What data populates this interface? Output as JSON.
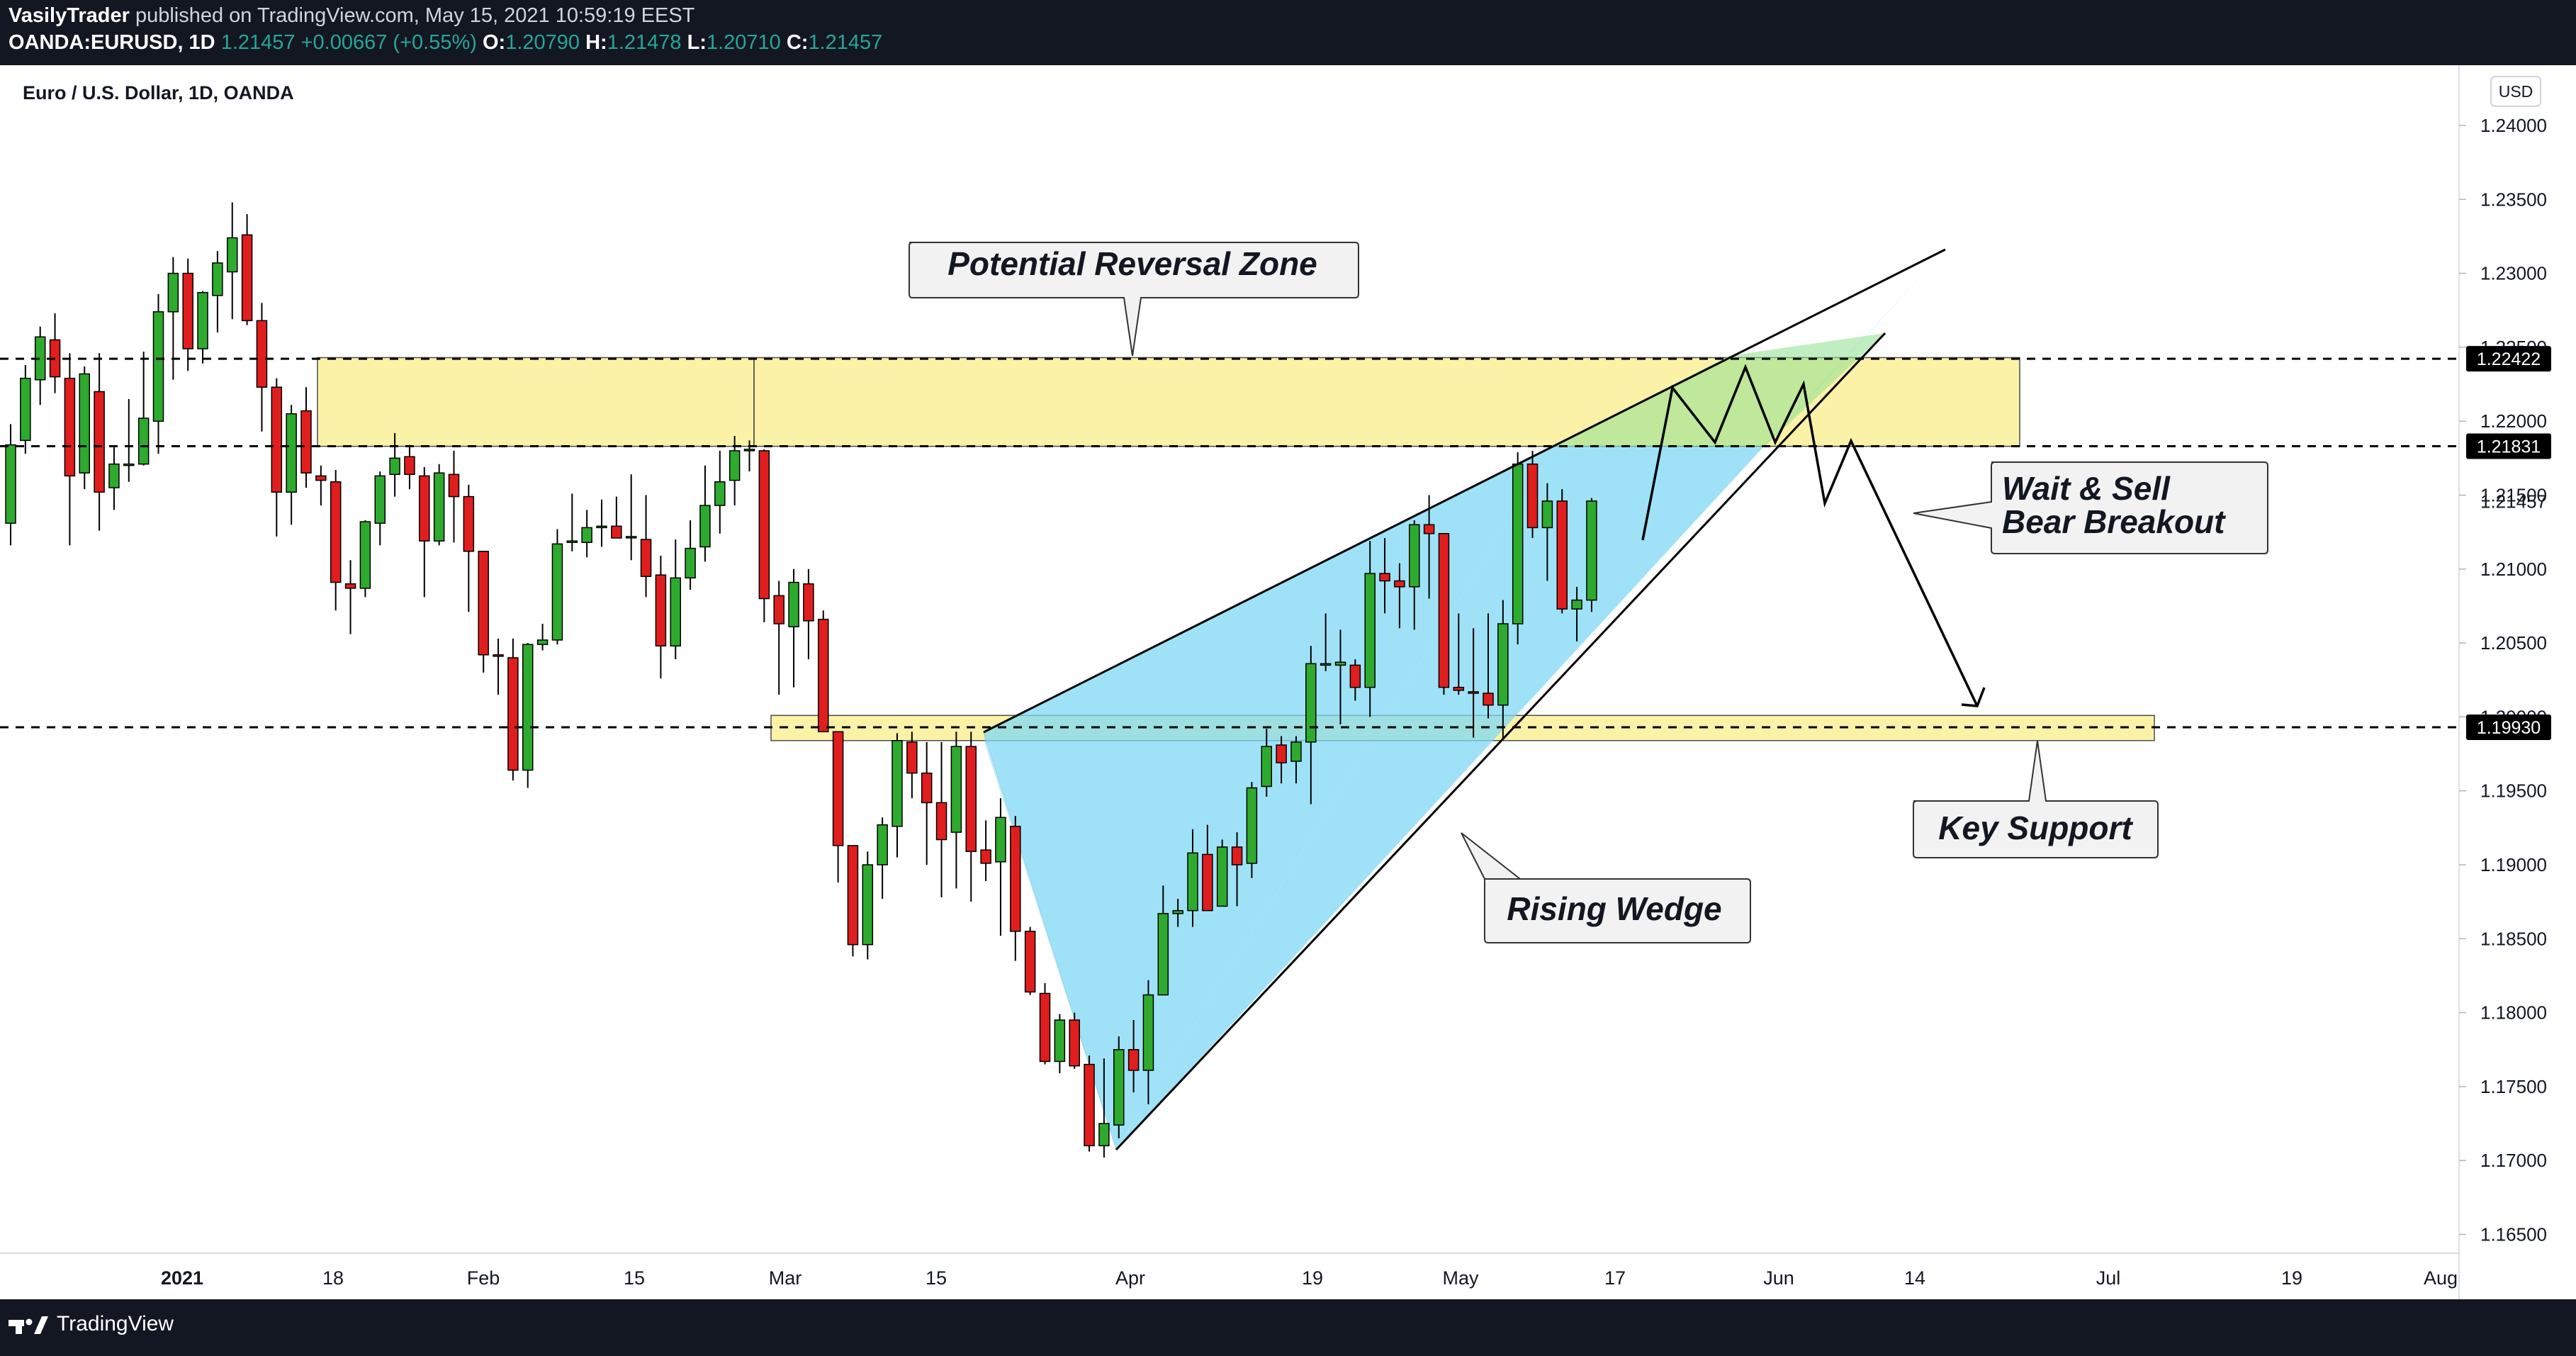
{
  "header": {
    "publisher": "VasilyTrader",
    "published_text": "published on TradingView.com, May 15, 2021 10:59:19 EEST",
    "symbol": "OANDA:EURUSD, 1D",
    "last": "1.21457",
    "change": "+0.00667 (+0.55%)",
    "o_label": "O:",
    "o_value": "1.20790",
    "h_label": "H:",
    "h_value": "1.21478",
    "l_label": "L:",
    "l_value": "1.20710",
    "c_label": "C:",
    "c_value": "1.21457"
  },
  "footer": {
    "brand": "TradingView"
  },
  "chart_data": {
    "type": "candlestick",
    "title": "Euro / U.S. Dollar, 1D, OANDA",
    "currency_badge": "USD",
    "y_range": [
      1.1625,
      1.2435
    ],
    "y_ticks": [
      "1.24000",
      "1.23500",
      "1.23000",
      "1.22500",
      "1.22000",
      "1.21500",
      "1.21000",
      "1.20500",
      "1.20000",
      "1.19500",
      "1.19000",
      "1.18500",
      "1.18000",
      "1.17500",
      "1.17000",
      "1.16500"
    ],
    "x_ticks": [
      {
        "label": "2021",
        "bold": true
      },
      {
        "label": "18"
      },
      {
        "label": "Feb"
      },
      {
        "label": "15"
      },
      {
        "label": "Mar"
      },
      {
        "label": "15"
      },
      {
        "label": "Apr"
      },
      {
        "label": "19"
      },
      {
        "label": "May"
      },
      {
        "label": "17"
      },
      {
        "label": "Jun"
      },
      {
        "label": "14"
      },
      {
        "label": "Jul"
      },
      {
        "label": "19"
      },
      {
        "label": "Aug"
      }
    ],
    "price_markers": [
      {
        "value": "1.22422",
        "price": 1.22422,
        "style": "dashed"
      },
      {
        "value": "1.21831",
        "price": 1.21831,
        "style": "dashed"
      },
      {
        "value": "1.21457",
        "price": 1.21457,
        "style": "plain"
      },
      {
        "value": "1.19930",
        "price": 1.1993,
        "style": "dashed"
      }
    ],
    "zones": [
      {
        "name": "Potential Reversal Zone",
        "from": 1.2183,
        "to": 1.2243
      },
      {
        "name": "Key Support",
        "from": 1.1984,
        "to": 1.2001
      }
    ],
    "annotations": [
      "Potential Reversal Zone",
      "Wait & Sell",
      "Bear Breakout",
      "Key Support",
      "Rising Wedge"
    ],
    "colors": {
      "up": "#26a69a",
      "bull_body": "#2eaa2e",
      "bear_body": "#e01e1e",
      "wedge": "#7fd8f5",
      "zone": "#fbf2a8",
      "background": "#ffffff"
    },
    "candles": [
      {
        "o": 1.2131,
        "h": 1.2198,
        "l": 1.2116,
        "c": 1.2184
      },
      {
        "o": 1.2187,
        "h": 1.2238,
        "l": 1.2178,
        "c": 1.2229
      },
      {
        "o": 1.2228,
        "h": 1.2264,
        "l": 1.2211,
        "c": 1.2257
      },
      {
        "o": 1.2255,
        "h": 1.2273,
        "l": 1.2219,
        "c": 1.223
      },
      {
        "o": 1.2229,
        "h": 1.2246,
        "l": 1.2116,
        "c": 1.2163
      },
      {
        "o": 1.2165,
        "h": 1.2237,
        "l": 1.2154,
        "c": 1.2232
      },
      {
        "o": 1.222,
        "h": 1.2246,
        "l": 1.2126,
        "c": 1.2152
      },
      {
        "o": 1.2155,
        "h": 1.2183,
        "l": 1.214,
        "c": 1.2171
      },
      {
        "o": 1.2171,
        "h": 1.2215,
        "l": 1.2159,
        "c": 1.2171
      },
      {
        "o": 1.2171,
        "h": 1.2247,
        "l": 1.217,
        "c": 1.2202
      },
      {
        "o": 1.22,
        "h": 1.2286,
        "l": 1.2178,
        "c": 1.2274
      },
      {
        "o": 1.2274,
        "h": 1.2311,
        "l": 1.2228,
        "c": 1.23
      },
      {
        "o": 1.23,
        "h": 1.231,
        "l": 1.2234,
        "c": 1.2249
      },
      {
        "o": 1.2249,
        "h": 1.2288,
        "l": 1.2239,
        "c": 1.2287
      },
      {
        "o": 1.2285,
        "h": 1.2315,
        "l": 1.226,
        "c": 1.2307
      },
      {
        "o": 1.2301,
        "h": 1.2348,
        "l": 1.2269,
        "c": 1.2324
      },
      {
        "o": 1.2326,
        "h": 1.234,
        "l": 1.2265,
        "c": 1.2268
      },
      {
        "o": 1.2268,
        "h": 1.228,
        "l": 1.2193,
        "c": 1.2223
      },
      {
        "o": 1.2223,
        "h": 1.2229,
        "l": 1.2122,
        "c": 1.2152
      },
      {
        "o": 1.2152,
        "h": 1.2211,
        "l": 1.213,
        "c": 1.2205
      },
      {
        "o": 1.2207,
        "h": 1.2223,
        "l": 1.2155,
        "c": 1.2165
      },
      {
        "o": 1.2163,
        "h": 1.217,
        "l": 1.2143,
        "c": 1.216
      },
      {
        "o": 1.2159,
        "h": 1.2167,
        "l": 1.2072,
        "c": 1.2091
      },
      {
        "o": 1.209,
        "h": 1.2106,
        "l": 1.2056,
        "c": 1.2087
      },
      {
        "o": 1.2087,
        "h": 1.2133,
        "l": 1.2081,
        "c": 1.2132
      },
      {
        "o": 1.2131,
        "h": 1.2166,
        "l": 1.2116,
        "c": 1.2163
      },
      {
        "o": 1.2164,
        "h": 1.2192,
        "l": 1.2149,
        "c": 1.2175
      },
      {
        "o": 1.2176,
        "h": 1.2184,
        "l": 1.2154,
        "c": 1.2164
      },
      {
        "o": 1.2163,
        "h": 1.2169,
        "l": 1.2081,
        "c": 1.2119
      },
      {
        "o": 1.2119,
        "h": 1.2171,
        "l": 1.2116,
        "c": 1.2165
      },
      {
        "o": 1.2164,
        "h": 1.218,
        "l": 1.2118,
        "c": 1.2149
      },
      {
        "o": 1.2149,
        "h": 1.2157,
        "l": 1.2071,
        "c": 1.2112
      },
      {
        "o": 1.2112,
        "h": 1.2112,
        "l": 1.203,
        "c": 1.2042
      },
      {
        "o": 1.2042,
        "h": 1.2053,
        "l": 1.2015,
        "c": 1.2041
      },
      {
        "o": 1.204,
        "h": 1.2053,
        "l": 1.1957,
        "c": 1.1964
      },
      {
        "o": 1.1964,
        "h": 1.205,
        "l": 1.1952,
        "c": 1.2049
      },
      {
        "o": 1.2049,
        "h": 1.2063,
        "l": 1.2045,
        "c": 1.2052
      },
      {
        "o": 1.2052,
        "h": 1.2127,
        "l": 1.2049,
        "c": 1.2117
      },
      {
        "o": 1.2118,
        "h": 1.2151,
        "l": 1.2112,
        "c": 1.2119
      },
      {
        "o": 1.2118,
        "h": 1.214,
        "l": 1.2108,
        "c": 1.2128
      },
      {
        "o": 1.2128,
        "h": 1.2147,
        "l": 1.2115,
        "c": 1.2129
      },
      {
        "o": 1.2129,
        "h": 1.2149,
        "l": 1.2121,
        "c": 1.2121
      },
      {
        "o": 1.2122,
        "h": 1.2164,
        "l": 1.2106,
        "c": 1.2122
      },
      {
        "o": 1.212,
        "h": 1.215,
        "l": 1.2081,
        "c": 1.2095
      },
      {
        "o": 1.2096,
        "h": 1.2109,
        "l": 1.2026,
        "c": 1.2048
      },
      {
        "o": 1.2048,
        "h": 1.212,
        "l": 1.2039,
        "c": 1.2094
      },
      {
        "o": 1.2094,
        "h": 1.2133,
        "l": 1.2086,
        "c": 1.2114
      },
      {
        "o": 1.2115,
        "h": 1.217,
        "l": 1.2105,
        "c": 1.2143
      },
      {
        "o": 1.2143,
        "h": 1.218,
        "l": 1.2124,
        "c": 1.2159
      },
      {
        "o": 1.216,
        "h": 1.219,
        "l": 1.2143,
        "c": 1.218
      },
      {
        "o": 1.218,
        "h": 1.2187,
        "l": 1.2166,
        "c": 1.2181
      },
      {
        "o": 1.218,
        "h": 1.2181,
        "l": 1.2064,
        "c": 1.208
      },
      {
        "o": 1.2082,
        "h": 1.2092,
        "l": 1.2015,
        "c": 1.2063
      },
      {
        "o": 1.2061,
        "h": 1.21,
        "l": 1.202,
        "c": 1.2091
      },
      {
        "o": 1.209,
        "h": 1.21,
        "l": 1.2039,
        "c": 1.2065
      },
      {
        "o": 1.2066,
        "h": 1.2072,
        "l": 1.1991,
        "c": 1.199
      },
      {
        "o": 1.199,
        "h": 1.1983,
        "l": 1.1888,
        "c": 1.1913
      },
      {
        "o": 1.1913,
        "h": 1.1913,
        "l": 1.1838,
        "c": 1.1846
      },
      {
        "o": 1.1846,
        "h": 1.1909,
        "l": 1.1836,
        "c": 1.19
      },
      {
        "o": 1.19,
        "h": 1.1932,
        "l": 1.1877,
        "c": 1.1927
      },
      {
        "o": 1.1926,
        "h": 1.1989,
        "l": 1.1905,
        "c": 1.1984
      },
      {
        "o": 1.1983,
        "h": 1.199,
        "l": 1.1945,
        "c": 1.1962
      },
      {
        "o": 1.1962,
        "h": 1.1983,
        "l": 1.19,
        "c": 1.1942
      },
      {
        "o": 1.1942,
        "h": 1.1983,
        "l": 1.1878,
        "c": 1.1917
      },
      {
        "o": 1.1922,
        "h": 1.199,
        "l": 1.1884,
        "c": 1.198
      },
      {
        "o": 1.198,
        "h": 1.199,
        "l": 1.1875,
        "c": 1.1909
      },
      {
        "o": 1.191,
        "h": 1.193,
        "l": 1.1889,
        "c": 1.1901
      },
      {
        "o": 1.1902,
        "h": 1.1945,
        "l": 1.1852,
        "c": 1.1932
      },
      {
        "o": 1.1926,
        "h": 1.1933,
        "l": 1.1835,
        "c": 1.1855
      },
      {
        "o": 1.1855,
        "h": 1.1858,
        "l": 1.1812,
        "c": 1.1814
      },
      {
        "o": 1.1813,
        "h": 1.182,
        "l": 1.1765,
        "c": 1.1767
      },
      {
        "o": 1.1767,
        "h": 1.1799,
        "l": 1.1759,
        "c": 1.1795
      },
      {
        "o": 1.1795,
        "h": 1.18,
        "l": 1.1762,
        "c": 1.1764
      },
      {
        "o": 1.1765,
        "h": 1.1771,
        "l": 1.1706,
        "c": 1.171
      },
      {
        "o": 1.171,
        "h": 1.1769,
        "l": 1.1702,
        "c": 1.1725
      },
      {
        "o": 1.1724,
        "h": 1.1784,
        "l": 1.1715,
        "c": 1.1775
      },
      {
        "o": 1.1775,
        "h": 1.1795,
        "l": 1.1746,
        "c": 1.1761
      },
      {
        "o": 1.1761,
        "h": 1.1822,
        "l": 1.1738,
        "c": 1.1812
      },
      {
        "o": 1.1812,
        "h": 1.1886,
        "l": 1.1812,
        "c": 1.1867
      },
      {
        "o": 1.1867,
        "h": 1.1877,
        "l": 1.1858,
        "c": 1.1869
      },
      {
        "o": 1.1869,
        "h": 1.1924,
        "l": 1.1858,
        "c": 1.1908
      },
      {
        "o": 1.1907,
        "h": 1.1927,
        "l": 1.1869,
        "c": 1.1869
      },
      {
        "o": 1.1872,
        "h": 1.1917,
        "l": 1.1872,
        "c": 1.1912
      },
      {
        "o": 1.1912,
        "h": 1.1922,
        "l": 1.1872,
        "c": 1.19
      },
      {
        "o": 1.1901,
        "h": 1.1956,
        "l": 1.1891,
        "c": 1.1952
      },
      {
        "o": 1.1953,
        "h": 1.1992,
        "l": 1.1946,
        "c": 1.198
      },
      {
        "o": 1.1981,
        "h": 1.1987,
        "l": 1.1955,
        "c": 1.1969
      },
      {
        "o": 1.197,
        "h": 1.1987,
        "l": 1.1955,
        "c": 1.1983
      },
      {
        "o": 1.1983,
        "h": 1.2048,
        "l": 1.1941,
        "c": 1.2036
      },
      {
        "o": 1.2035,
        "h": 1.207,
        "l": 1.2031,
        "c": 1.2036
      },
      {
        "o": 1.2035,
        "h": 1.2059,
        "l": 1.1995,
        "c": 1.2037
      },
      {
        "o": 1.2035,
        "h": 1.2039,
        "l": 1.2011,
        "c": 1.202
      },
      {
        "o": 1.202,
        "h": 1.2119,
        "l": 1.2,
        "c": 1.2097
      },
      {
        "o": 1.2097,
        "h": 1.2121,
        "l": 1.207,
        "c": 1.2092
      },
      {
        "o": 1.2092,
        "h": 1.2104,
        "l": 1.206,
        "c": 1.2088
      },
      {
        "o": 1.2088,
        "h": 1.2133,
        "l": 1.2059,
        "c": 1.213
      },
      {
        "o": 1.213,
        "h": 1.215,
        "l": 1.208,
        "c": 1.2124
      },
      {
        "o": 1.2124,
        "h": 1.2123,
        "l": 1.2015,
        "c": 1.202
      },
      {
        "o": 1.202,
        "h": 1.207,
        "l": 1.2015,
        "c": 1.2018
      },
      {
        "o": 1.2017,
        "h": 1.206,
        "l": 1.1986,
        "c": 1.2016
      },
      {
        "o": 1.2016,
        "h": 1.207,
        "l": 1.1999,
        "c": 1.2008
      },
      {
        "o": 1.2008,
        "h": 1.2079,
        "l": 1.1986,
        "c": 1.2063
      },
      {
        "o": 1.2063,
        "h": 1.2179,
        "l": 1.2049,
        "c": 1.2171
      },
      {
        "o": 1.2171,
        "h": 1.218,
        "l": 1.2121,
        "c": 1.2128
      },
      {
        "o": 1.2128,
        "h": 1.2158,
        "l": 1.2092,
        "c": 1.2146
      },
      {
        "o": 1.2146,
        "h": 1.2154,
        "l": 1.207,
        "c": 1.2073
      },
      {
        "o": 1.2073,
        "h": 1.2088,
        "l": 1.2051,
        "c": 1.2079
      },
      {
        "o": 1.2079,
        "h": 1.2148,
        "l": 1.2071,
        "c": 1.2146
      }
    ]
  }
}
